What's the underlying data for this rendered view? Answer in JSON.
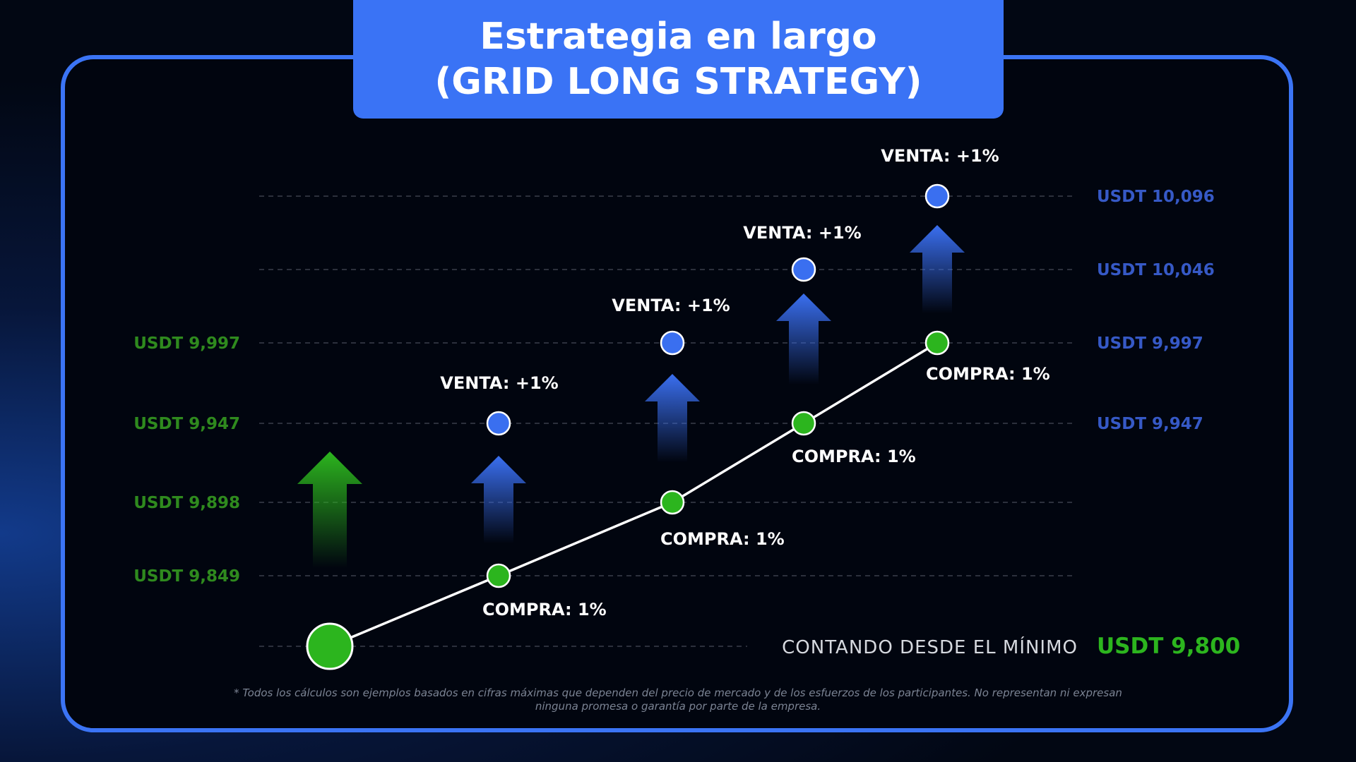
{
  "title": {
    "line1": "Estrategia en largo",
    "line2": "(GRID LONG STRATEGY)"
  },
  "colors": {
    "green": "#2cb51e",
    "blue": "#3a6ff0",
    "label_green": "#2f8a1e",
    "label_blue": "#3659c6"
  },
  "chart_data": {
    "type": "line",
    "title": "Estrategia en largo (GRID LONG STRATEGY)",
    "levels": [
      9800,
      9849,
      9898,
      9947,
      9997,
      10046,
      10096
    ],
    "left_level_labels": [
      {
        "value": 9849,
        "label": "USDT 9,849"
      },
      {
        "value": 9898,
        "label": "USDT 9,898"
      },
      {
        "value": 9947,
        "label": "USDT 9,947"
      },
      {
        "value": 9997,
        "label": "USDT 9,997"
      }
    ],
    "right_level_labels": [
      {
        "value": 9947,
        "label": "USDT 9,947"
      },
      {
        "value": 9997,
        "label": "USDT 9,997"
      },
      {
        "value": 10046,
        "label": "USDT 10,046"
      },
      {
        "value": 10096,
        "label": "USDT 10,096"
      }
    ],
    "start": {
      "value": 9800,
      "label": "CONTANDO DESDE EL MÍNIMO",
      "price": "USDT 9,800"
    },
    "buys": [
      {
        "value": 9849,
        "label": "COMPRA: 1%"
      },
      {
        "value": 9898,
        "label": "COMPRA: 1%"
      },
      {
        "value": 9947,
        "label": "COMPRA: 1%"
      },
      {
        "value": 9997,
        "label": "COMPRA: 1%"
      }
    ],
    "sells": [
      {
        "value": 9947,
        "label": "VENTA: +1%"
      },
      {
        "value": 9997,
        "label": "VENTA: +1%"
      },
      {
        "value": 10046,
        "label": "VENTA: +1%"
      },
      {
        "value": 10096,
        "label": "VENTA: +1%"
      }
    ],
    "grid": "dashed horizontal"
  },
  "disclaimer": {
    "line1": "* Todos los cálculos son ejemplos basados en cifras máximas que dependen del precio de mercado y de los esfuerzos de los participantes. No representan ni expresan",
    "line2": "ninguna promesa o garantía por parte de la empresa."
  }
}
